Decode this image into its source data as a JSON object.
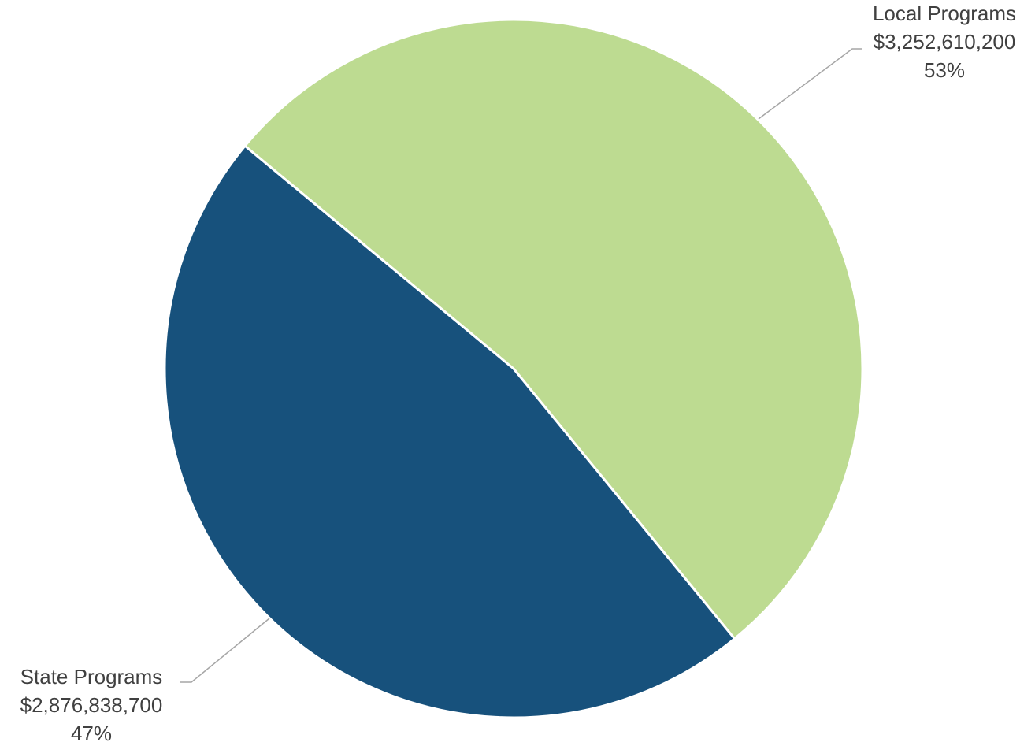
{
  "chart_data": {
    "type": "pie",
    "slices": [
      {
        "name": "Local Programs",
        "value": 3252610200,
        "value_label": "$3,252,610,200",
        "percent_label": "53%",
        "color": "#bddb91"
      },
      {
        "name": "State Programs",
        "value": 2876838700,
        "value_label": "$2,876,838,700",
        "percent_label": "47%",
        "color": "#17517c"
      }
    ],
    "slice_border_color": "#ffffff",
    "leader_line_color": "#a6a6a6",
    "label_color": "#404040",
    "legend": "none"
  }
}
